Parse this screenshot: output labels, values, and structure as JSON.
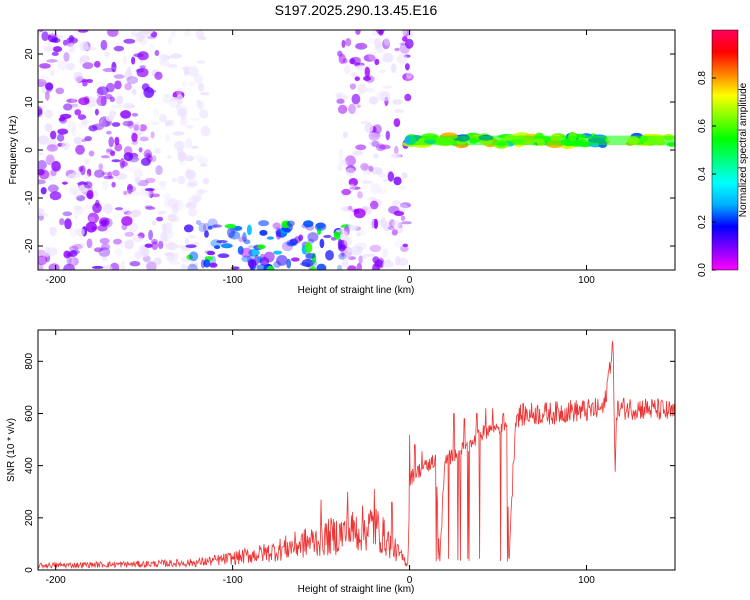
{
  "title": "S197.2025.290.13.45.E16",
  "colors": {
    "line": "#ee3333",
    "axis": "#000000",
    "spectrogram_low": "#ece0ff",
    "spectrogram_mid": "#7a2cff",
    "spectrogram_high": "#ff0000"
  },
  "chart_data": [
    {
      "type": "heatmap",
      "name": "spectrogram",
      "title": "S197.2025.290.13.45.E16",
      "xlabel": "Height of straight line (km)",
      "ylabel": "Frequency (Hz)",
      "xlim": [
        -210,
        150
      ],
      "ylim": [
        -25,
        25
      ],
      "xticks": [
        -200,
        -100,
        0,
        100
      ],
      "yticks": [
        -20,
        -10,
        0,
        10,
        20
      ],
      "colorbar": {
        "label": "Normalized spectral amplitude",
        "range": [
          0,
          1
        ],
        "ticks": [
          "0.0",
          "0.2",
          "0.4",
          "0.6",
          "0.8"
        ],
        "colormap": [
          "#ff00ff",
          "#8000ff",
          "#0000ff",
          "#00b0ff",
          "#00ffff",
          "#00ff80",
          "#00ff00",
          "#80ff00",
          "#ffff00",
          "#ff8000",
          "#ff0000",
          "#ff0060"
        ]
      },
      "features": [
        {
          "label": "scattered noise",
          "x_range": [
            -210,
            -140
          ],
          "freq_range": [
            -25,
            25
          ],
          "amplitude": 0.12
        },
        {
          "label": "scattered noise",
          "x_range": [
            -140,
            -115
          ],
          "freq_range": [
            -25,
            25
          ],
          "amplitude": 0.06
        },
        {
          "label": "low-frequency band",
          "x_range": [
            -125,
            -35
          ],
          "freq_range": [
            -25,
            -15
          ],
          "amplitude": 0.3
        },
        {
          "label": "noise column",
          "x_range": [
            -40,
            0
          ],
          "freq_range": [
            -25,
            25
          ],
          "amplitude": 0.1
        },
        {
          "label": "signal line",
          "x_range": [
            0,
            150
          ],
          "freq_range": [
            1,
            3
          ],
          "amplitude": 0.85
        }
      ]
    },
    {
      "type": "line",
      "name": "snr",
      "xlabel": "Height of straight line (km)",
      "ylabel": "SNR (10 * v/v)",
      "xlim": [
        -210,
        150
      ],
      "ylim": [
        0,
        920
      ],
      "xticks": [
        -200,
        -100,
        0,
        100
      ],
      "yticks": [
        0,
        200,
        400,
        600,
        800
      ],
      "x": [
        -210,
        -180,
        -150,
        -120,
        -100,
        -80,
        -60,
        -40,
        -20,
        -1,
        0,
        5,
        10,
        15,
        17,
        20,
        25,
        30,
        35,
        40,
        45,
        50,
        55,
        56,
        60,
        70,
        80,
        90,
        100,
        110,
        115,
        116,
        117,
        118,
        120,
        130,
        140,
        150
      ],
      "y": [
        15,
        18,
        20,
        25,
        40,
        60,
        90,
        120,
        150,
        20,
        350,
        380,
        400,
        420,
        30,
        420,
        440,
        460,
        480,
        520,
        540,
        550,
        560,
        30,
        590,
        600,
        600,
        610,
        610,
        620,
        880,
        360,
        620,
        610,
        620,
        620,
        615,
        600
      ],
      "spikes": [
        {
          "x": 3,
          "y": 480
        },
        {
          "x": 7,
          "y": 455
        },
        {
          "x": 13,
          "y": 440
        },
        {
          "x": 25,
          "y": 600
        },
        {
          "x": 31,
          "y": 580
        },
        {
          "x": 38,
          "y": 600
        },
        {
          "x": 43,
          "y": 620
        },
        {
          "x": 47,
          "y": 620
        },
        {
          "x": 53,
          "y": 600
        },
        {
          "x": -50,
          "y": 270
        },
        {
          "x": -35,
          "y": 300
        },
        {
          "x": -20,
          "y": 310
        },
        {
          "x": -10,
          "y": 260
        }
      ]
    }
  ]
}
